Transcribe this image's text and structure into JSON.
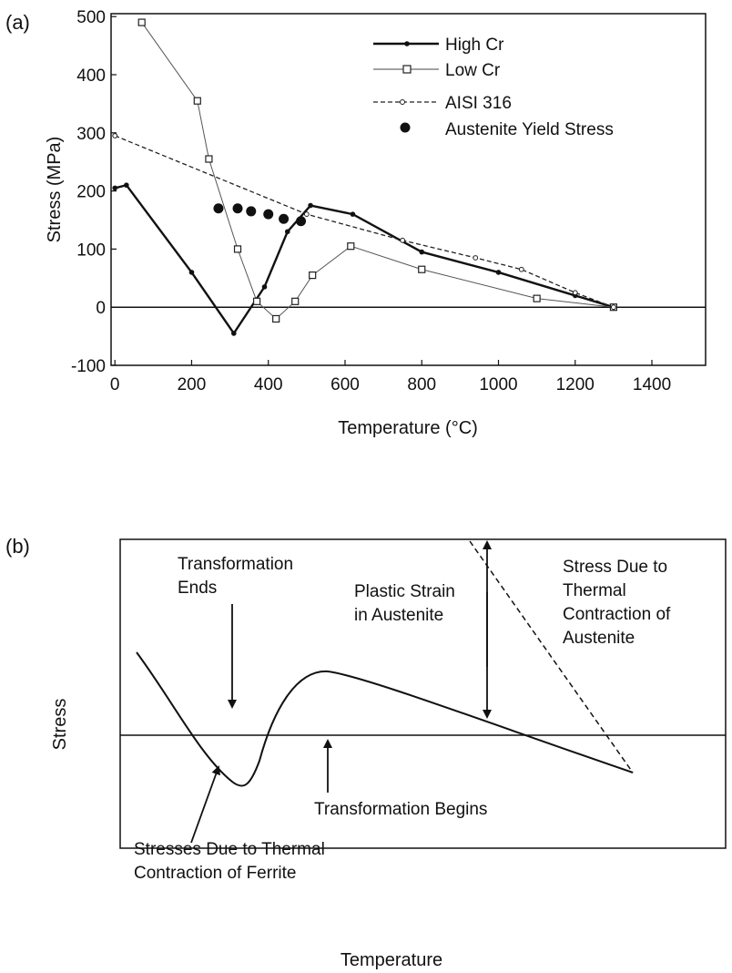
{
  "panel_a": {
    "label": "(a)",
    "xlabel": "Temperature (°C)",
    "ylabel": "Stress (MPa)",
    "legend": [
      "High Cr",
      "Low Cr",
      "AISI 316",
      "Austenite Yield Stress"
    ]
  },
  "panel_b": {
    "label": "(b)",
    "xlabel": "Temperature",
    "ylabel": "Stress",
    "annotations": {
      "transformation_ends": [
        "Transformation",
        "Ends"
      ],
      "plastic_strain": [
        "Plastic Strain",
        "in Austenite"
      ],
      "thermal_austenite": [
        "Stress Due to",
        "Thermal",
        "Contraction of",
        "Austenite"
      ],
      "transformation_begins": "Transformation Begins",
      "thermal_ferrite": [
        "Stresses Due to Thermal",
        "Contraction of Ferrite"
      ]
    }
  },
  "chart_data": [
    {
      "type": "line",
      "panel": "a",
      "xlabel": "Temperature (°C)",
      "ylabel": "Stress (MPa)",
      "xlim": [
        -10,
        1540
      ],
      "ylim": [
        -100,
        505
      ],
      "xticks": [
        0,
        200,
        400,
        600,
        800,
        1000,
        1200,
        1400
      ],
      "yticks": [
        -100,
        0,
        100,
        200,
        300,
        400,
        500
      ],
      "zero_line": true,
      "legend_position": "top-right",
      "series": [
        {
          "name": "High Cr",
          "style": "solid-thick",
          "marker": "dot",
          "x": [
            0,
            30,
            200,
            310,
            390,
            450,
            510,
            620,
            800,
            1000,
            1200,
            1300
          ],
          "y": [
            205,
            210,
            60,
            -45,
            35,
            130,
            175,
            160,
            95,
            60,
            20,
            0
          ]
        },
        {
          "name": "Low Cr",
          "style": "solid-thin",
          "marker": "open-square",
          "x": [
            70,
            215,
            245,
            320,
            370,
            420,
            470,
            515,
            615,
            800,
            1100,
            1300
          ],
          "y": [
            490,
            355,
            255,
            100,
            10,
            -20,
            10,
            55,
            105,
            65,
            15,
            0
          ]
        },
        {
          "name": "AISI 316",
          "style": "dashed",
          "marker": "small-open-circle",
          "x": [
            0,
            500,
            750,
            940,
            1060,
            1200,
            1300
          ],
          "y": [
            295,
            160,
            115,
            85,
            65,
            25,
            0
          ]
        },
        {
          "name": "Austenite Yield Stress",
          "style": "none",
          "marker": "filled-circle",
          "x": [
            270,
            320,
            355,
            400,
            440,
            485
          ],
          "y": [
            170,
            170,
            165,
            160,
            152,
            148
          ]
        }
      ]
    },
    {
      "type": "line",
      "panel": "b",
      "xlabel": "Temperature",
      "ylabel": "Stress",
      "qualitative": true,
      "series": [
        {
          "name": "",
          "style": "solid"
        },
        {
          "name": "",
          "style": "dashed"
        }
      ]
    }
  ]
}
